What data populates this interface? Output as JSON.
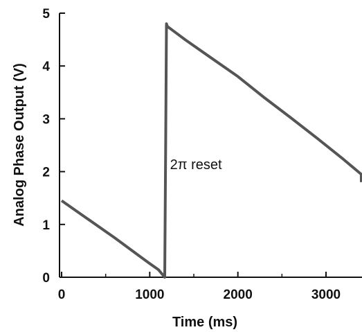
{
  "chart_data": {
    "type": "line",
    "title": "",
    "xlabel": "Time (ms)",
    "ylabel": "Analog Phase Output (V)",
    "xlim": [
      -50,
      3500
    ],
    "ylim": [
      0,
      5
    ],
    "xticks": [
      0,
      1000,
      2000,
      3000
    ],
    "yticks": [
      0,
      1,
      2,
      3,
      4,
      5
    ],
    "x_minor_ticks": [
      500,
      1500,
      2500
    ],
    "grid": false,
    "legend": "none",
    "line_color": "#555555",
    "series": [
      {
        "x": [
          0,
          300,
          600,
          900,
          1000,
          1100,
          1170,
          1180,
          1190,
          1200,
          1400,
          1700,
          2000,
          2300,
          2600,
          2900,
          3200,
          3400,
          3450,
          3500
        ],
        "values": [
          1.45,
          1.1,
          0.75,
          0.38,
          0.26,
          0.14,
          0.0,
          2.4,
          4.8,
          4.75,
          4.5,
          4.15,
          3.8,
          3.4,
          3.02,
          2.63,
          2.23,
          1.95,
          1.8,
          1.8
        ]
      }
    ],
    "annotations": [
      {
        "text": "2π reset",
        "x": 1230,
        "y": 2.05
      }
    ]
  }
}
